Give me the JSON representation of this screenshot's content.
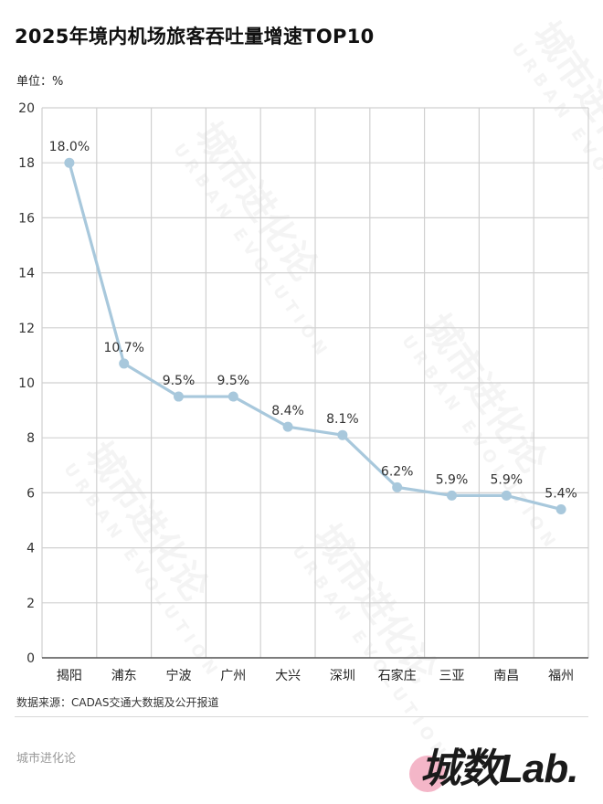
{
  "header": {
    "title": "2025年境内机场旅客吞吐量增速TOP10",
    "unit": "单位：%"
  },
  "chart_data": {
    "type": "line",
    "title": "2025年境内机场旅客吞吐量增速TOP10",
    "ylabel": "%",
    "categories": [
      "揭阳",
      "浦东",
      "宁波",
      "广州",
      "大兴",
      "深圳",
      "石家庄",
      "三亚",
      "南昌",
      "福州"
    ],
    "series": [
      {
        "values": [
          18.0,
          10.7,
          9.5,
          9.5,
          8.4,
          8.1,
          6.2,
          5.9,
          5.9,
          5.4
        ]
      }
    ],
    "data_labels": [
      "18.0%",
      "10.7%",
      "9.5%",
      "9.5%",
      "8.4%",
      "8.1%",
      "6.2%",
      "5.9%",
      "5.9%",
      "5.4%"
    ],
    "ylim": [
      0,
      20
    ],
    "yticks": [
      0,
      2,
      4,
      6,
      8,
      10,
      12,
      14,
      16,
      18,
      20
    ],
    "grid": true,
    "line_color": "#a8c8dc",
    "grid_color": "#d0d0d0"
  },
  "footer": {
    "source": "数据来源：CADAS交通大数据及公开报道",
    "brand_left": "城市进化论",
    "brand_logo": "城数Lab."
  },
  "watermark": {
    "text": "城市进化论",
    "subtext": "URBAN EVOLUTION"
  }
}
